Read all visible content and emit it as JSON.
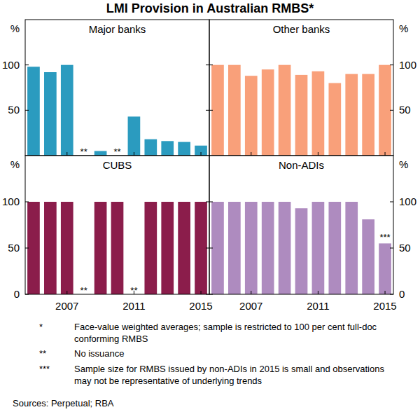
{
  "title": "LMI Provision in Australian RMBS*",
  "chart_data": [
    {
      "type": "bar",
      "title": "Major banks",
      "x": [
        2005,
        2006,
        2007,
        2008,
        2009,
        2010,
        2011,
        2012,
        2013,
        2014,
        2015
      ],
      "values": [
        98,
        92,
        100,
        null,
        5,
        null,
        43,
        18,
        16,
        15,
        11
      ],
      "color": "#2b9bbf",
      "xlim": [
        2004.5,
        2015.5
      ],
      "xticks": [
        2007,
        2011,
        2015
      ],
      "ylim": [
        0,
        150
      ],
      "yticks": [
        50,
        100
      ],
      "y_label": "%",
      "grid": false,
      "tick_labels": "y",
      "annotations": [
        {
          "x": 2008,
          "text": "**"
        },
        {
          "x": 2010,
          "text": "**"
        }
      ]
    },
    {
      "type": "bar",
      "title": "Other banks",
      "x": [
        2005,
        2006,
        2007,
        2008,
        2009,
        2010,
        2011,
        2012,
        2013,
        2014,
        2015
      ],
      "values": [
        100,
        100,
        88,
        95,
        100,
        89,
        93,
        80,
        90,
        90,
        100
      ],
      "color": "#f9a07a",
      "xlim": [
        2004.5,
        2015.5
      ],
      "xticks": [
        2007,
        2011,
        2015
      ],
      "ylim": [
        0,
        150
      ],
      "yticks": [
        50,
        100
      ],
      "y_label": "%",
      "grid": false,
      "tick_labels": "y"
    },
    {
      "type": "bar",
      "title": "CUBS",
      "x": [
        2005,
        2006,
        2007,
        2008,
        2009,
        2010,
        2011,
        2012,
        2013,
        2014,
        2015
      ],
      "values": [
        100,
        100,
        100,
        null,
        100,
        100,
        null,
        100,
        100,
        100,
        100
      ],
      "color": "#8b1d4b",
      "xlim": [
        2004.5,
        2015.5
      ],
      "xticks": [
        2007,
        2011,
        2015
      ],
      "ylim": [
        0,
        150
      ],
      "yticks": [
        0,
        50,
        100
      ],
      "y_label": "%",
      "grid": false,
      "tick_labels": true,
      "annotations": [
        {
          "x": 2008,
          "text": "**"
        },
        {
          "x": 2011,
          "text": "**"
        }
      ]
    },
    {
      "type": "bar",
      "title": "Non-ADIs",
      "x": [
        2005,
        2006,
        2007,
        2008,
        2009,
        2010,
        2011,
        2012,
        2013,
        2014,
        2015
      ],
      "values": [
        100,
        100,
        100,
        100,
        100,
        93,
        100,
        100,
        100,
        81,
        55
      ],
      "color": "#ae8bbf",
      "xlim": [
        2004.5,
        2015.5
      ],
      "xticks": [
        2007,
        2011,
        2015
      ],
      "ylim": [
        0,
        150
      ],
      "yticks": [
        0,
        50,
        100
      ],
      "y_label": "%",
      "grid": false,
      "tick_labels": true,
      "annotations": [
        {
          "x": 2015,
          "text": "***"
        }
      ]
    }
  ],
  "footnotes": [
    {
      "marker": "*",
      "text": "Face-value weighted averages; sample is restricted to 100 per cent full-doc conforming RMBS"
    },
    {
      "marker": "**",
      "text": "No issuance"
    },
    {
      "marker": "***",
      "text": "Sample size for RMBS issued by non-ADIs in 2015 is small and observations may not be representative of underlying trends"
    }
  ],
  "sources": "Sources: Perpetual; RBA"
}
